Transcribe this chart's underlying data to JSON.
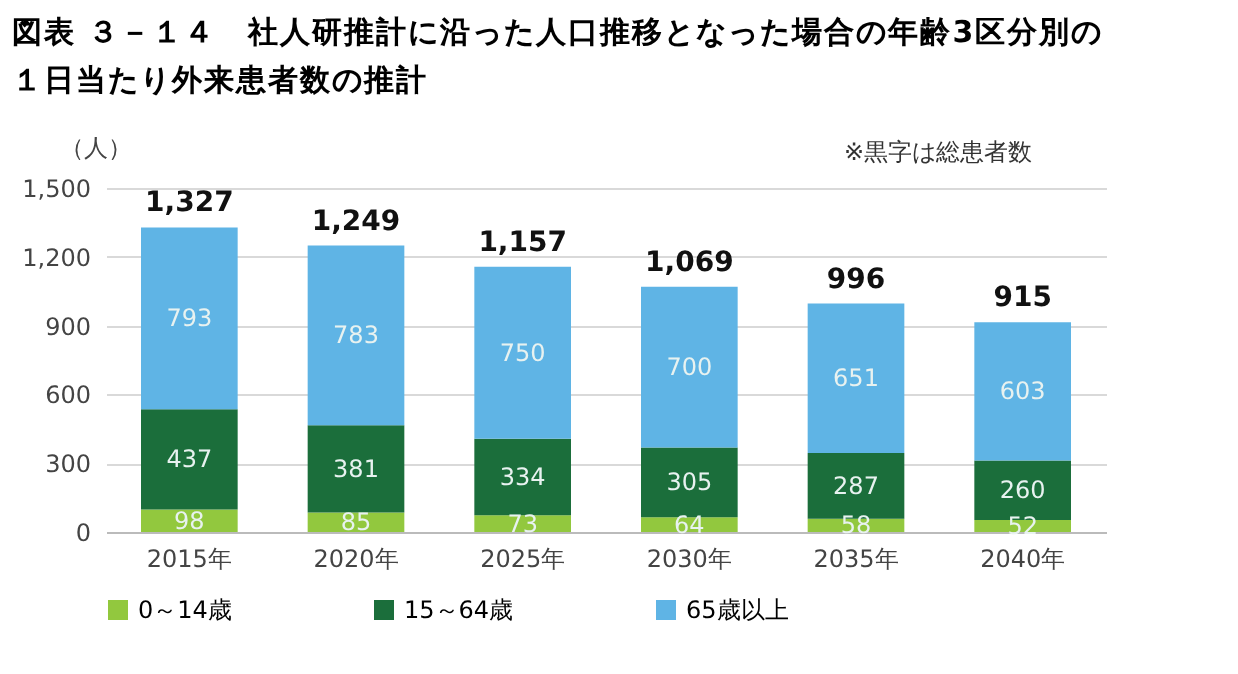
{
  "chart_data": {
    "type": "bar",
    "title": "図表 ３－１４　社人研推計に沿った人口推移となった場合の年齢3区分別の１日当たり外来患者数の推計",
    "ylabel": "（人）",
    "annotations": [
      "※黒字は総患者数"
    ],
    "categories": [
      "2015年",
      "2020年",
      "2025年",
      "2030年",
      "2035年",
      "2040年"
    ],
    "stacked": true,
    "data_labels": true,
    "grid": "y",
    "legend": "bottom",
    "ylim": [
      0,
      1500
    ],
    "yticks": [
      0,
      300,
      600,
      900,
      {
        "value": 1200,
        "label": "1,200"
      },
      {
        "value": 1500,
        "label": "1,500"
      }
    ],
    "totals": [
      "1,327",
      "1,249",
      "1,157",
      "1,069",
      "996",
      "915"
    ],
    "series": [
      {
        "name": "0～14歳",
        "color": "#92c83e",
        "values": [
          98,
          85,
          73,
          64,
          58,
          52
        ]
      },
      {
        "name": "15～64歳",
        "color": "#1b6e3b",
        "values": [
          437,
          381,
          334,
          305,
          287,
          260
        ]
      },
      {
        "name": "65歳以上",
        "color": "#5fb4e5",
        "values": [
          793,
          783,
          750,
          700,
          651,
          603
        ]
      }
    ]
  }
}
